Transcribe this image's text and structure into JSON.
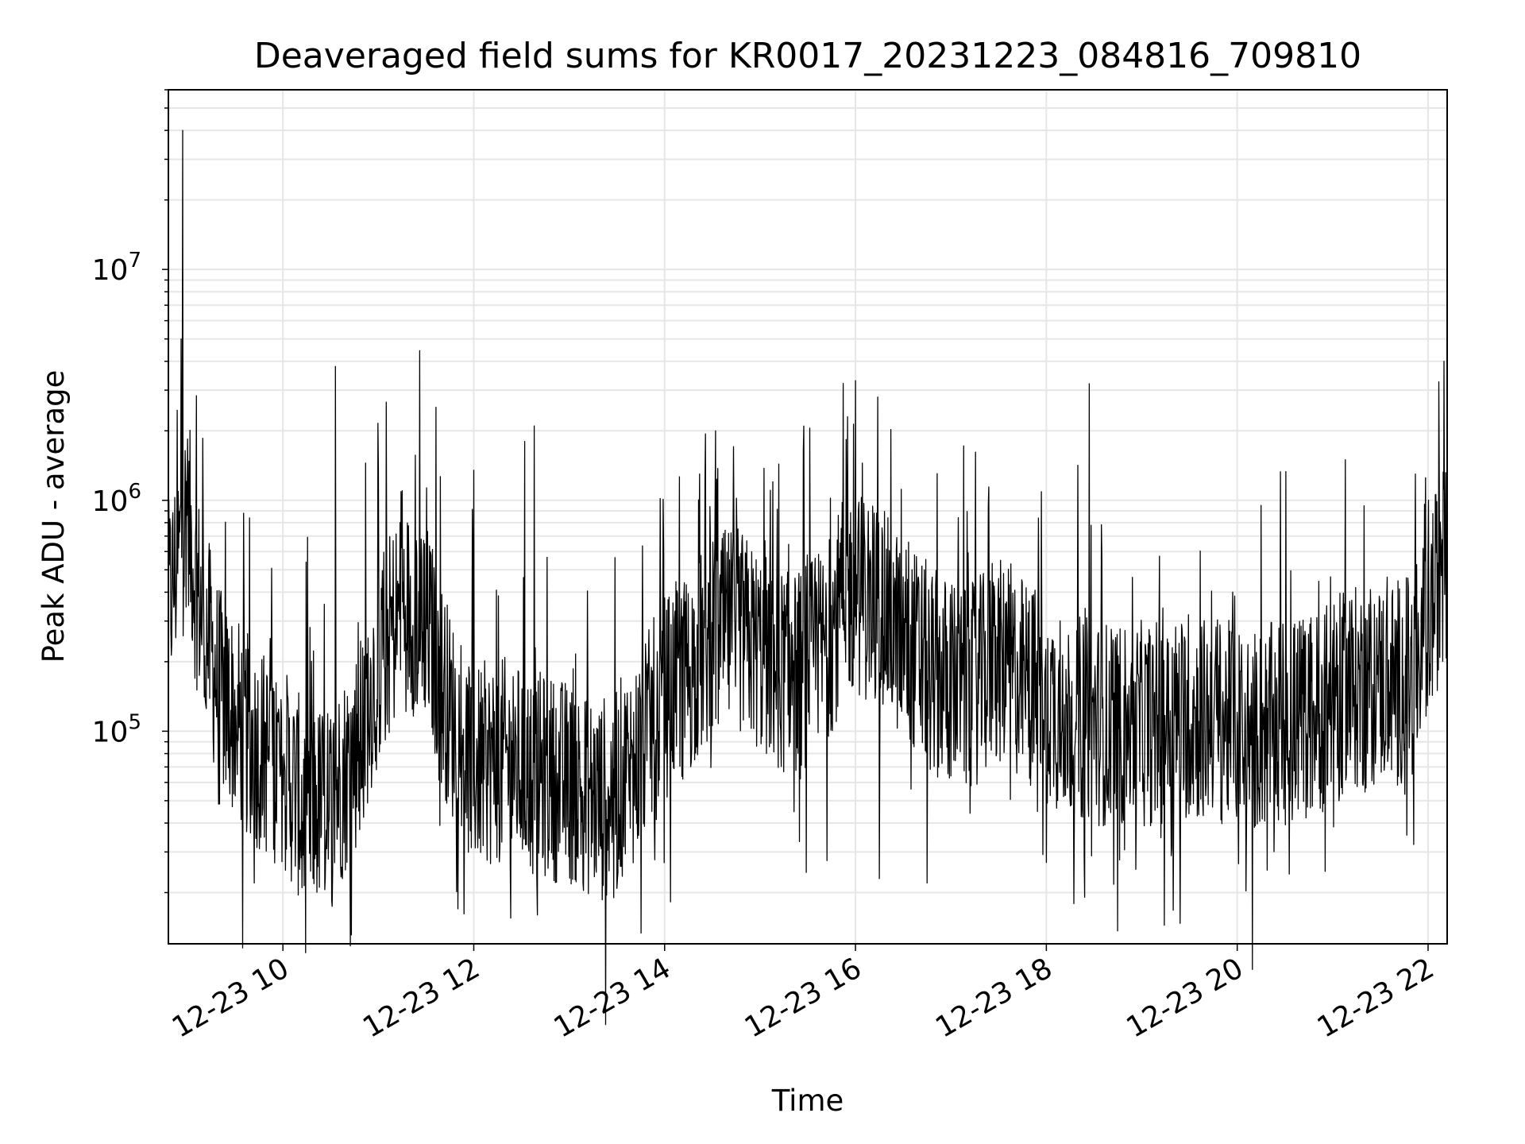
{
  "chart_data": {
    "type": "line",
    "title": "Deaveraged field sums for KR0017_20231223_084816_709810",
    "xlabel": "Time",
    "ylabel": "Peak ADU - average",
    "x_ticks": [
      "12-23 10",
      "12-23 12",
      "12-23 14",
      "12-23 16",
      "12-23 18",
      "12-23 20",
      "12-23 22"
    ],
    "x_range": [
      "2023-12-23 08:48",
      "2023-12-23 22:12"
    ],
    "y_scale": "log",
    "y_ticks": [
      {
        "base": "10",
        "exp": "5",
        "value": 100000
      },
      {
        "base": "10",
        "exp": "6",
        "value": 1000000
      },
      {
        "base": "10",
        "exp": "7",
        "value": 10000000
      }
    ],
    "ylim": [
      12000,
      60000000
    ],
    "grid": true,
    "series": [
      {
        "color": "#000000",
        "x": [
          "2023-12-23 08:48",
          "2023-12-23 08:55",
          "2023-12-23 09:00",
          "2023-12-23 09:05",
          "2023-12-23 09:20",
          "2023-12-23 09:40",
          "2023-12-23 10:00",
          "2023-12-23 10:15",
          "2023-12-23 10:30",
          "2023-12-23 10:45",
          "2023-12-23 11:00",
          "2023-12-23 11:15",
          "2023-12-23 11:30",
          "2023-12-23 11:45",
          "2023-12-23 12:00",
          "2023-12-23 12:20",
          "2023-12-23 12:40",
          "2023-12-23 13:00",
          "2023-12-23 13:20",
          "2023-12-23 13:40",
          "2023-12-23 14:00",
          "2023-12-23 14:15",
          "2023-12-23 14:30",
          "2023-12-23 14:45",
          "2023-12-23 15:00",
          "2023-12-23 15:20",
          "2023-12-23 15:40",
          "2023-12-23 15:55",
          "2023-12-23 16:10",
          "2023-12-23 16:30",
          "2023-12-23 16:50",
          "2023-12-23 17:10",
          "2023-12-23 17:30",
          "2023-12-23 17:50",
          "2023-12-23 18:10",
          "2023-12-23 18:30",
          "2023-12-23 18:50",
          "2023-12-23 19:10",
          "2023-12-23 19:30",
          "2023-12-23 19:50",
          "2023-12-23 20:10",
          "2023-12-23 20:30",
          "2023-12-23 20:50",
          "2023-12-23 21:10",
          "2023-12-23 21:30",
          "2023-12-23 21:50",
          "2023-12-23 22:05",
          "2023-12-23 22:12"
        ],
        "y": [
          350000,
          600000,
          900000,
          450000,
          150000,
          90000,
          70000,
          45000,
          50000,
          80000,
          200000,
          350000,
          300000,
          120000,
          70000,
          75000,
          65000,
          60000,
          50000,
          70000,
          140000,
          180000,
          250000,
          280000,
          220000,
          170000,
          230000,
          400000,
          380000,
          250000,
          180000,
          150000,
          200000,
          160000,
          120000,
          110000,
          105000,
          110000,
          115000,
          110000,
          100000,
          110000,
          120000,
          150000,
          160000,
          170000,
          400000,
          600000
        ],
        "spikes": [
          {
            "x": "2023-12-23 08:57",
            "y": 40000000
          },
          {
            "x": "2023-12-23 08:56",
            "y": 5000000
          },
          {
            "x": "2023-12-23 10:33",
            "y": 3800000
          },
          {
            "x": "2023-12-23 10:52",
            "y": 1450000
          },
          {
            "x": "2023-12-23 11:15",
            "y": 1100000
          },
          {
            "x": "2023-12-23 12:00",
            "y": 1350000
          },
          {
            "x": "2023-12-23 12:32",
            "y": 1800000
          },
          {
            "x": "2023-12-23 12:38",
            "y": 2100000
          },
          {
            "x": "2023-12-23 14:32",
            "y": 2000000
          },
          {
            "x": "2023-12-23 15:55",
            "y": 2300000
          },
          {
            "x": "2023-12-23 16:00",
            "y": 3300000
          },
          {
            "x": "2023-12-23 16:14",
            "y": 2800000
          },
          {
            "x": "2023-12-23 18:27",
            "y": 3200000
          },
          {
            "x": "2023-12-23 20:15",
            "y": 950000
          },
          {
            "x": "2023-12-23 21:08",
            "y": 1500000
          },
          {
            "x": "2023-12-23 21:52",
            "y": 1300000
          },
          {
            "x": "2023-12-23 22:10",
            "y": 4000000
          }
        ],
        "dips": [
          {
            "x": "2023-12-23 09:42",
            "y": 22000
          },
          {
            "x": "2023-12-23 10:12",
            "y": 21000
          },
          {
            "x": "2023-12-23 11:50",
            "y": 17000
          },
          {
            "x": "2023-12-23 12:40",
            "y": 16000
          },
          {
            "x": "2023-12-23 13:28",
            "y": 19000
          },
          {
            "x": "2023-12-23 16:15",
            "y": 23000
          },
          {
            "x": "2023-12-23 16:45",
            "y": 22000
          },
          {
            "x": "2023-12-23 18:00",
            "y": 27000
          }
        ]
      }
    ]
  }
}
